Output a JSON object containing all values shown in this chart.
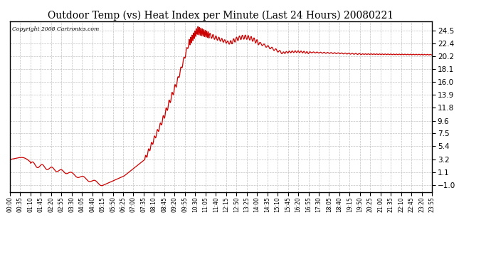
{
  "title": "Outdoor Temp (vs) Heat Index per Minute (Last 24 Hours) 20080221",
  "copyright_text": "Copyright 2008 Cartronics.com",
  "line_color": "#cc0000",
  "background_color": "#ffffff",
  "plot_bg_color": "#ffffff",
  "grid_color": "#bbbbbb",
  "title_fontsize": 10,
  "yticks": [
    -1.0,
    1.1,
    3.2,
    5.4,
    7.5,
    9.6,
    11.8,
    13.9,
    16.0,
    18.1,
    20.2,
    22.4,
    24.5
  ],
  "ylim": [
    -2.2,
    26.0
  ],
  "xtick_labels": [
    "00:00",
    "00:35",
    "01:10",
    "01:45",
    "02:20",
    "02:55",
    "03:30",
    "04:05",
    "04:40",
    "05:15",
    "05:50",
    "06:25",
    "07:00",
    "07:35",
    "08:10",
    "08:45",
    "09:20",
    "09:55",
    "10:30",
    "11:05",
    "11:40",
    "12:15",
    "12:50",
    "13:25",
    "14:00",
    "14:35",
    "15:10",
    "15:45",
    "16:20",
    "16:55",
    "17:30",
    "18:05",
    "18:40",
    "19:15",
    "19:50",
    "20:25",
    "21:00",
    "21:35",
    "22:10",
    "22:45",
    "23:20",
    "23:55"
  ],
  "n_points": 1440,
  "figsize": [
    6.9,
    3.75
  ],
  "dpi": 100
}
